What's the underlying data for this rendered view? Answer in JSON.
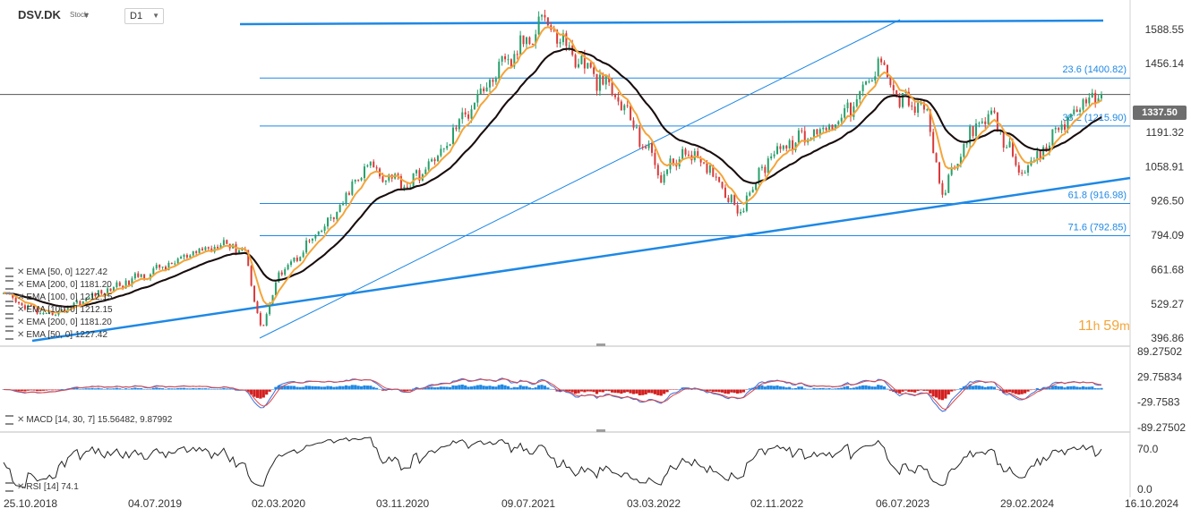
{
  "header": {
    "symbol": "DSV.DK",
    "symbol_type": "Stock",
    "timeframe": "D1",
    "dropdown_glyph": "▼"
  },
  "price": {
    "current_label": "1337.50",
    "current_value": 1337.5,
    "axis_ticks": [
      1588.55,
      1456.14,
      1191.32,
      1058.91,
      926.5,
      794.09,
      661.68,
      529.27,
      396.86
    ],
    "axis_tick_labels": [
      "1588.55",
      "1456.14",
      "1191.32",
      "1058.91",
      "926.50",
      "794.09",
      "661.68",
      "529.27",
      "396.86"
    ],
    "range": [
      370,
      1650
    ]
  },
  "timer": {
    "hours": "11",
    "h_unit": "h",
    "minutes": "59",
    "m_unit": "m"
  },
  "legends": {
    "price": [
      {
        "label": "EMA [50, 0] 1227.42"
      },
      {
        "label": "EMA [200, 0] 1181.20"
      },
      {
        "label": "EMA [100, 0] 1212.15"
      },
      {
        "label": "EMA [100, 0] 1212.15"
      },
      {
        "label": "EMA [200, 0] 1181.20"
      },
      {
        "label": "EMA [50, 0] 1227.42"
      }
    ],
    "macd": "MACD [14, 30, 7] 15.56482, 9.87992",
    "rsi": "RSI [14] 74.1",
    "close_glyph": "✕"
  },
  "x_axis": {
    "labels": [
      "25.10.2018",
      "04.07.2019",
      "02.03.2020",
      "03.11.2020",
      "09.07.2021",
      "03.03.2022",
      "02.11.2022",
      "06.07.2023",
      "29.02.2024",
      "16.10.2024"
    ]
  },
  "fib_levels": [
    {
      "label": "23.6 (1400.82)",
      "value": 1400.82
    },
    {
      "label": "38.2 (1215.90)",
      "value": 1215.9
    },
    {
      "label": "61.8 (916.98)",
      "value": 916.98
    },
    {
      "label": "71.6 (792.85)",
      "value": 792.85
    }
  ],
  "macd_axis": {
    "ticks": [
      89.27502,
      29.75834,
      -29.7583,
      -89.27502
    ],
    "tick_labels": [
      "89.27502",
      "29.75834",
      "-29.7583",
      "-89.27502"
    ]
  },
  "rsi_axis": {
    "ticks": [
      70.0,
      0.0
    ],
    "tick_labels": [
      "70.0",
      "0.0"
    ]
  },
  "colors": {
    "ema50": "#f4a53a",
    "ema100": "#111111",
    "ema200": "#e03a3a",
    "trendline": "#1e88e5",
    "fib": "#1e88e5",
    "up": "#27a06b",
    "down": "#d93a3a",
    "macd_pos": "#1e88e5",
    "macd_neg": "#d32020",
    "rsi": "#222222"
  },
  "chart_data": {
    "type": "line",
    "title": "DSV.DK",
    "x_labels": [
      "25.10.2018",
      "04.07.2019",
      "02.03.2020",
      "03.11.2020",
      "09.07.2021",
      "03.03.2022",
      "02.11.2022",
      "06.07.2023",
      "29.02.2024",
      "16.10.2024"
    ],
    "price_anchors": [
      [
        0,
        560
      ],
      [
        0.04,
        480
      ],
      [
        0.07,
        540
      ],
      [
        0.11,
        610
      ],
      [
        0.15,
        680
      ],
      [
        0.2,
        770
      ],
      [
        0.22,
        730
      ],
      [
        0.235,
        420
      ],
      [
        0.25,
        640
      ],
      [
        0.3,
        860
      ],
      [
        0.33,
        1060
      ],
      [
        0.37,
        990
      ],
      [
        0.4,
        1120
      ],
      [
        0.43,
        1330
      ],
      [
        0.45,
        1420
      ],
      [
        0.47,
        1510
      ],
      [
        0.49,
        1640
      ],
      [
        0.505,
        1560
      ],
      [
        0.53,
        1440
      ],
      [
        0.56,
        1320
      ],
      [
        0.6,
        1020
      ],
      [
        0.62,
        1120
      ],
      [
        0.65,
        1020
      ],
      [
        0.67,
        880
      ],
      [
        0.7,
        1120
      ],
      [
        0.73,
        1170
      ],
      [
        0.755,
        1230
      ],
      [
        0.78,
        1320
      ],
      [
        0.8,
        1480
      ],
      [
        0.815,
        1320
      ],
      [
        0.84,
        1280
      ],
      [
        0.855,
        940
      ],
      [
        0.88,
        1190
      ],
      [
        0.9,
        1250
      ],
      [
        0.93,
        1020
      ],
      [
        0.95,
        1140
      ],
      [
        0.965,
        1230
      ],
      [
        0.98,
        1290
      ],
      [
        1.0,
        1337.5
      ]
    ],
    "ema_last": {
      "EMA 50": 1227.42,
      "EMA 100": 1212.15,
      "EMA 200": 1181.2
    },
    "fib_levels": [
      1400.82,
      1215.9,
      916.98,
      792.85
    ],
    "macd_last": {
      "macd": 15.56482,
      "signal": 9.87992
    },
    "rsi_last": 74.1,
    "ylim": [
      370,
      1650
    ],
    "grid": false,
    "legend": "left"
  }
}
